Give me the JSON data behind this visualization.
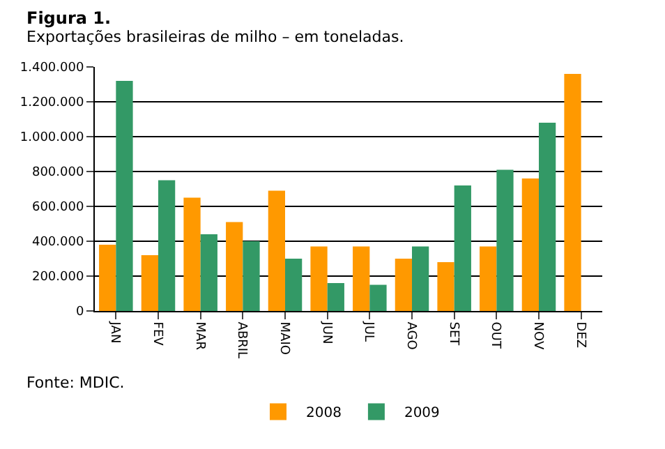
{
  "chart_data": {
    "type": "bar",
    "title": "Figura 1.",
    "subtitle": "Exportações brasileiras de milho – em toneladas.",
    "categories": [
      "JAN",
      "FEV",
      "MAR",
      "ABRIL",
      "MAIO",
      "JUN",
      "JUL",
      "AGO",
      "SET",
      "OUT",
      "NOV",
      "DEZ"
    ],
    "series": [
      {
        "name": "2008",
        "color": "#ff9900",
        "values": [
          380000,
          320000,
          650000,
          510000,
          690000,
          370000,
          370000,
          300000,
          280000,
          370000,
          760000,
          1360000
        ]
      },
      {
        "name": "2009",
        "color": "#339966",
        "values": [
          1320000,
          750000,
          440000,
          400000,
          300000,
          160000,
          150000,
          370000,
          720000,
          810000,
          1080000,
          null
        ]
      }
    ],
    "ylim": [
      0,
      1400000
    ],
    "yticks": [
      0,
      {
        "value": 200000,
        "label": "200.000"
      },
      {
        "value": 400000,
        "label": "400.000"
      },
      {
        "value": 600000,
        "label": "600.000"
      },
      {
        "value": 800000,
        "label": "800.000"
      },
      {
        "value": 1000000,
        "label": "1.000.000"
      },
      {
        "value": 1200000,
        "label": "1.200.000"
      },
      {
        "value": 1400000,
        "label": "1.400.000"
      }
    ],
    "grid": "y",
    "legend": "bottom",
    "annotations": [
      "Fonte: MDIC."
    ]
  }
}
